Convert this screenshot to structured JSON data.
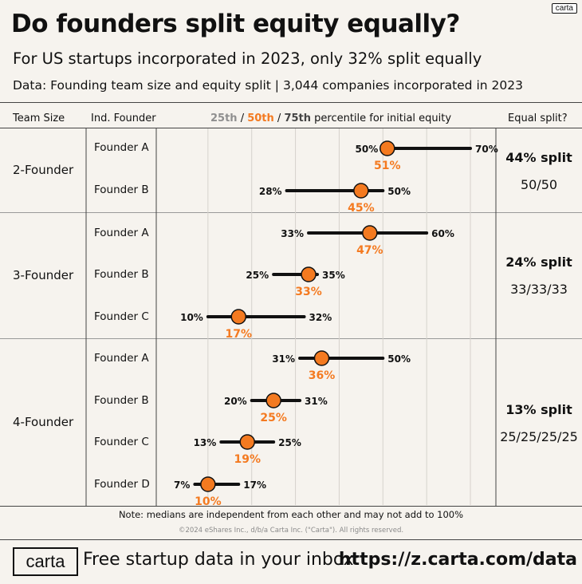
{
  "header": {
    "title": "Do founders split equity equally?",
    "subtitle": "For US startups incorporated in 2023, only 32% split equally",
    "data_line": "Data: Founding team size and equity split | 3,044 companies incorporated in 2023",
    "brand_small": "carta"
  },
  "columns": {
    "team_size": "Team Size",
    "ind_founder": "Ind. Founder",
    "p25": "25th",
    "sep1": " / ",
    "p50": "50th",
    "sep2": " / ",
    "p75": "75th",
    "pct_suffix": " percentile for initial equity",
    "equal_split": "Equal split?"
  },
  "groups": [
    {
      "label": "2-Founder",
      "split_pct": "44% split",
      "split_ratio": "50/50"
    },
    {
      "label": "3-Founder",
      "split_pct": "24% split",
      "split_ratio": "33/33/33"
    },
    {
      "label": "4-Founder",
      "split_pct": "13% split",
      "split_ratio": "25/25/25/25"
    }
  ],
  "chart_data": {
    "type": "dot-range",
    "title": "25th / 50th / 75th percentile for initial equity",
    "xlim": [
      0,
      70
    ],
    "unit": "%",
    "rows": [
      {
        "group": "2-Founder",
        "founder": "Founder A",
        "p25": 50,
        "p50": 51,
        "p75": 70
      },
      {
        "group": "2-Founder",
        "founder": "Founder B",
        "p25": 28,
        "p50": 45,
        "p75": 50
      },
      {
        "group": "3-Founder",
        "founder": "Founder A",
        "p25": 33,
        "p50": 47,
        "p75": 60
      },
      {
        "group": "3-Founder",
        "founder": "Founder B",
        "p25": 25,
        "p50": 33,
        "p75": 35
      },
      {
        "group": "3-Founder",
        "founder": "Founder C",
        "p25": 10,
        "p50": 17,
        "p75": 32
      },
      {
        "group": "4-Founder",
        "founder": "Founder A",
        "p25": 31,
        "p50": 36,
        "p75": 50
      },
      {
        "group": "4-Founder",
        "founder": "Founder B",
        "p25": 20,
        "p50": 25,
        "p75": 31
      },
      {
        "group": "4-Founder",
        "founder": "Founder C",
        "p25": 13,
        "p50": 19,
        "p75": 25
      },
      {
        "group": "4-Founder",
        "founder": "Founder D",
        "p25": 7,
        "p50": 10,
        "p75": 17
      }
    ]
  },
  "colors": {
    "median": "#f47a20",
    "p25": "#8f8f8f",
    "p75": "#444444",
    "line": "#111111",
    "grid": "#d6d2cc",
    "background": "#f6f3ee"
  },
  "footer": {
    "note": "Note: medians are independent from each other and may not add to 100%",
    "copyright": "©2024 eShares Inc., d/b/a Carta Inc. (\"Carta\"). All rights reserved.",
    "brand": "carta",
    "cta": "Free startup data in your inbox:",
    "url": "https://z.carta.com/data"
  }
}
